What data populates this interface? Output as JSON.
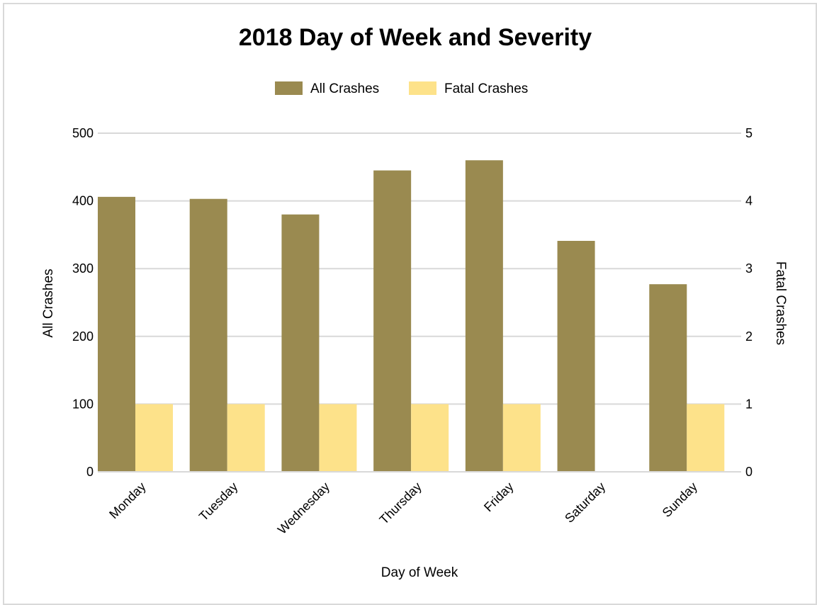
{
  "chart_data": {
    "type": "bar",
    "title": "2018 Day of Week and Severity",
    "xlabel": "Day of Week",
    "ylabel": "All Crashes",
    "y2label": "Fatal Crashes",
    "categories": [
      "Monday",
      "Tuesday",
      "Wednesday",
      "Thursday",
      "Friday",
      "Saturday",
      "Sunday"
    ],
    "series": [
      {
        "name": "All Crashes",
        "axis": "left",
        "color": "#9a8a50",
        "values": [
          406,
          403,
          380,
          445,
          460,
          341,
          277
        ]
      },
      {
        "name": "Fatal Crashes",
        "axis": "right",
        "color": "#fde28a",
        "values": [
          1,
          1,
          1,
          1,
          1,
          0,
          1
        ]
      }
    ],
    "ylim": [
      0,
      500
    ],
    "y2lim": [
      0,
      5
    ],
    "yticks": [
      "0",
      "100",
      "200",
      "300",
      "400",
      "500"
    ],
    "y2ticks": [
      "0",
      "1",
      "2",
      "3",
      "4",
      "5"
    ],
    "grid": true,
    "legend": "top-center",
    "gridColor": "#d9d9d9"
  }
}
